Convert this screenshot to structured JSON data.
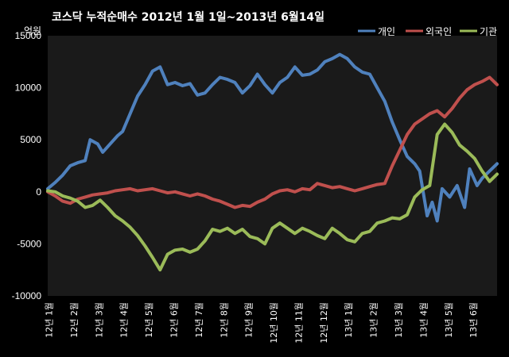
{
  "title": "코스닥  누적순매수 2012년 1월 1일~2013년 6월14일",
  "unit": "억원",
  "chart_data": {
    "type": "line",
    "title": "코스닥  누적순매수 2012년 1월 1일~2013년 6월14일",
    "ylabel": "억원",
    "ylim": [
      -10000,
      15000
    ],
    "yticks": [
      15000,
      10000,
      5000,
      0,
      -5000,
      -10000
    ],
    "xlim": [
      0,
      18
    ],
    "xticks": [
      "12년 1월",
      "12년 2월",
      "12년 3월",
      "12년 4월",
      "12년 5월",
      "12년 6월",
      "12년 7월",
      "12년 8월",
      "12년 9월",
      "12년 10월",
      "12년 11월",
      "12년 12월",
      "13년 1월",
      "13년 2월",
      "13년 3월",
      "13년 4월",
      "13년 5월",
      "13년 6월"
    ],
    "grid": false,
    "legend": "top-right",
    "series": [
      {
        "name": "개인",
        "color": "#4F81BD",
        "x": [
          0.0,
          0.3,
          0.6,
          0.9,
          1.2,
          1.5,
          1.7,
          2.0,
          2.2,
          2.5,
          2.8,
          3.0,
          3.3,
          3.6,
          3.9,
          4.2,
          4.5,
          4.8,
          5.1,
          5.4,
          5.7,
          6.0,
          6.3,
          6.6,
          6.9,
          7.2,
          7.5,
          7.8,
          8.1,
          8.4,
          8.7,
          9.0,
          9.3,
          9.6,
          9.9,
          10.2,
          10.5,
          10.8,
          11.1,
          11.4,
          11.7,
          12.0,
          12.3,
          12.6,
          12.9,
          13.2,
          13.5,
          13.8,
          14.1,
          14.4,
          14.7,
          14.9,
          15.2,
          15.4,
          15.6,
          15.8,
          16.1,
          16.4,
          16.7,
          16.9,
          17.2,
          17.4,
          17.7,
          18.0
        ],
        "y": [
          300,
          900,
          1600,
          2500,
          2800,
          3000,
          5000,
          4600,
          3800,
          4600,
          5400,
          5800,
          7500,
          9200,
          10300,
          11600,
          12000,
          10300,
          10500,
          10200,
          10400,
          9300,
          9500,
          10300,
          11000,
          10800,
          10500,
          9500,
          10200,
          11300,
          10300,
          9500,
          10500,
          11000,
          12000,
          11200,
          11300,
          11700,
          12500,
          12800,
          13200,
          12800,
          12000,
          11500,
          11300,
          10000,
          8700,
          6700,
          5000,
          3400,
          2700,
          2000,
          -2300,
          -1000,
          -2800,
          300,
          -500,
          600,
          -1500,
          2200,
          600,
          1300,
          2000,
          2700
        ]
      },
      {
        "name": "외국인",
        "color": "#C0504D",
        "x": [
          0.0,
          0.3,
          0.6,
          0.9,
          1.2,
          1.5,
          1.8,
          2.1,
          2.4,
          2.7,
          3.0,
          3.3,
          3.6,
          3.9,
          4.2,
          4.5,
          4.8,
          5.1,
          5.4,
          5.7,
          6.0,
          6.3,
          6.6,
          6.9,
          7.2,
          7.5,
          7.8,
          8.1,
          8.4,
          8.7,
          9.0,
          9.3,
          9.6,
          9.9,
          10.2,
          10.5,
          10.8,
          11.1,
          11.4,
          11.7,
          12.0,
          12.3,
          12.6,
          12.9,
          13.2,
          13.5,
          13.8,
          14.1,
          14.4,
          14.7,
          15.0,
          15.3,
          15.6,
          15.9,
          16.2,
          16.5,
          16.8,
          17.1,
          17.4,
          17.7,
          18.0
        ],
        "y": [
          0,
          -400,
          -900,
          -1100,
          -700,
          -500,
          -300,
          -200,
          -100,
          100,
          200,
          300,
          100,
          200,
          300,
          100,
          -100,
          0,
          -200,
          -400,
          -200,
          -400,
          -700,
          -900,
          -1200,
          -1500,
          -1300,
          -1400,
          -1000,
          -700,
          -200,
          100,
          200,
          0,
          300,
          200,
          800,
          600,
          400,
          500,
          300,
          100,
          300,
          500,
          700,
          800,
          2500,
          4000,
          5500,
          6500,
          7000,
          7500,
          7800,
          7200,
          8000,
          9000,
          9800,
          10300,
          10600,
          11000,
          10300
        ]
      },
      {
        "name": "기관",
        "color": "#9BBB59",
        "x": [
          0.0,
          0.3,
          0.6,
          0.9,
          1.2,
          1.5,
          1.8,
          2.1,
          2.4,
          2.7,
          3.0,
          3.3,
          3.6,
          3.9,
          4.2,
          4.5,
          4.8,
          5.1,
          5.4,
          5.7,
          6.0,
          6.3,
          6.6,
          6.9,
          7.2,
          7.5,
          7.8,
          8.1,
          8.4,
          8.7,
          9.0,
          9.3,
          9.6,
          9.9,
          10.2,
          10.5,
          10.8,
          11.1,
          11.4,
          11.7,
          12.0,
          12.3,
          12.6,
          12.9,
          13.2,
          13.5,
          13.8,
          14.1,
          14.4,
          14.7,
          15.0,
          15.3,
          15.6,
          15.9,
          16.2,
          16.5,
          16.8,
          17.1,
          17.4,
          17.7,
          18.0
        ],
        "y": [
          100,
          0,
          -400,
          -600,
          -900,
          -1500,
          -1300,
          -800,
          -1500,
          -2300,
          -2800,
          -3400,
          -4200,
          -5200,
          -6300,
          -7500,
          -6000,
          -5600,
          -5500,
          -5800,
          -5500,
          -4700,
          -3600,
          -3800,
          -3500,
          -4000,
          -3600,
          -4300,
          -4500,
          -5000,
          -3500,
          -3000,
          -3500,
          -4000,
          -3500,
          -3800,
          -4200,
          -4500,
          -3500,
          -4000,
          -4600,
          -4800,
          -4000,
          -3800,
          -3000,
          -2800,
          -2500,
          -2600,
          -2200,
          -500,
          200,
          600,
          5500,
          6500,
          5700,
          4500,
          3900,
          3200,
          2000,
          1000,
          1700
        ]
      }
    ]
  }
}
